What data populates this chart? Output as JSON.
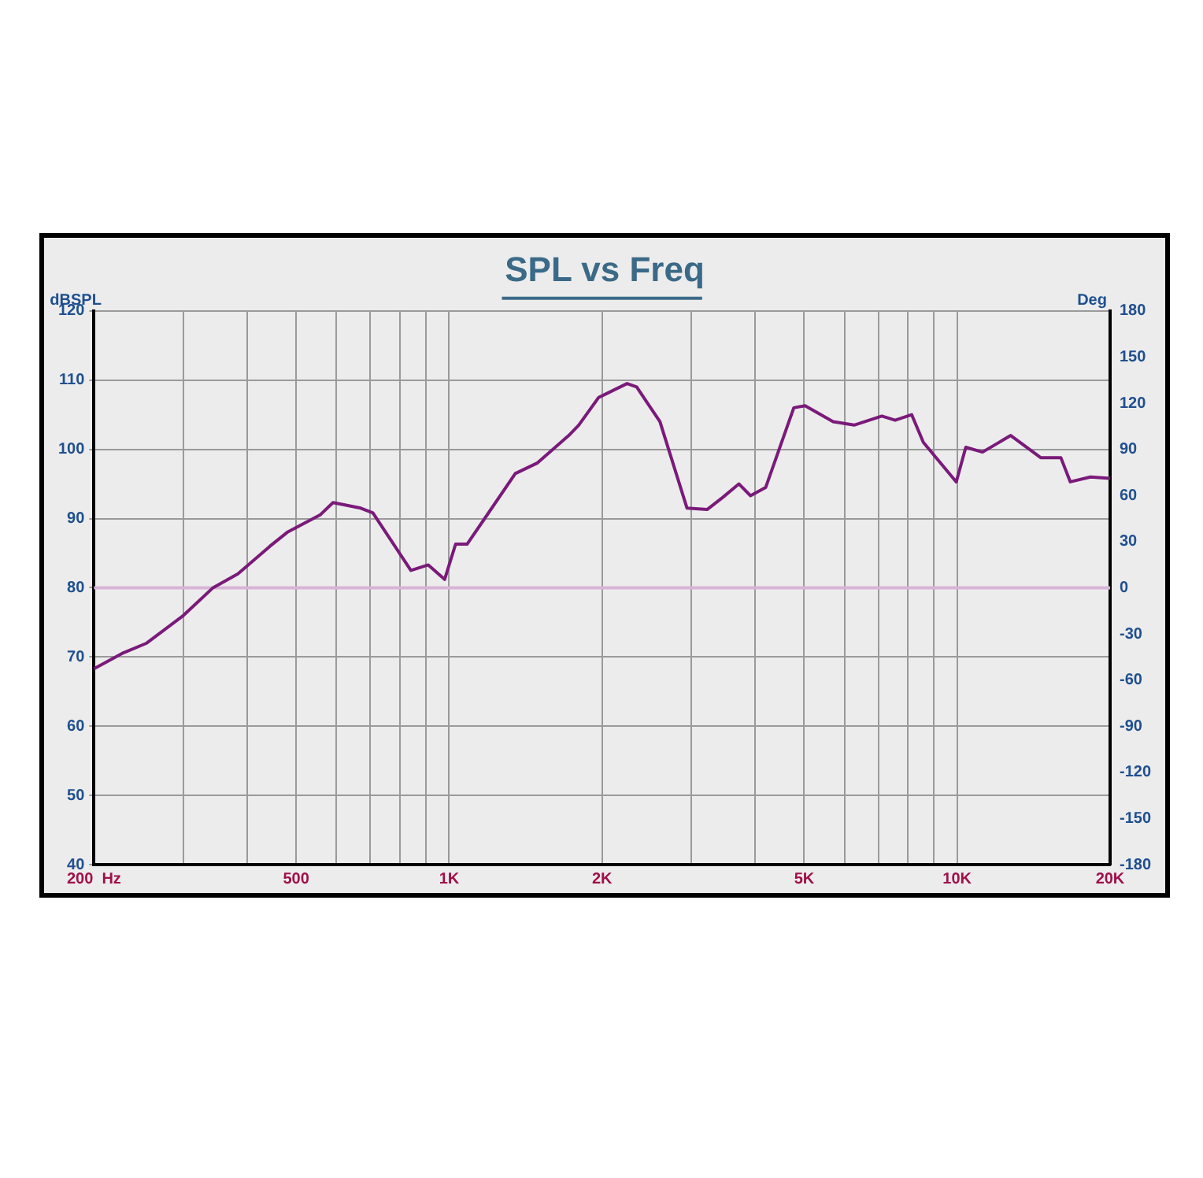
{
  "chart_data": {
    "type": "line",
    "title": "SPL vs Freq",
    "ylabel": "dBSPL",
    "y2label": "Deg",
    "x": [
      200,
      227,
      254,
      300,
      343,
      384,
      444,
      480,
      557,
      591,
      670,
      708,
      841,
      910,
      980,
      1030,
      1085,
      1175,
      1350,
      1490,
      1720,
      1800,
      1970,
      2240,
      2340,
      2600,
      2940,
      3220,
      3450,
      3720,
      3920,
      4200,
      4770,
      5020,
      5700,
      6270,
      7110,
      7550,
      8140,
      8580,
      9960,
      10400,
      11220,
      12750,
      14600,
      16000,
      16700,
      18300,
      20000
    ],
    "series": [
      {
        "color": "#7a1a7a",
        "values": [
          68.3,
          70.5,
          72,
          76,
          80,
          82,
          86,
          88,
          90.5,
          92.3,
          91.5,
          90.8,
          82.5,
          83.3,
          81.2,
          86.3,
          86.3,
          90,
          96.5,
          98,
          102,
          103.5,
          107.5,
          109.5,
          109,
          104,
          91.5,
          91.3,
          93,
          95,
          93.3,
          94.5,
          106,
          106.3,
          104,
          103.5,
          104.8,
          104.2,
          105,
          101,
          95.3,
          100.3,
          99.6,
          102,
          98.8,
          98.8,
          95.3,
          96,
          95.8
        ]
      }
    ],
    "log": "x",
    "xlim": [
      200,
      20000
    ],
    "xticks": [
      {
        "value": 200,
        "label": "200  Hz"
      },
      {
        "value": 300,
        "label": null
      },
      {
        "value": 400,
        "label": null
      },
      {
        "value": 500,
        "label": "500"
      },
      {
        "value": 600,
        "label": null
      },
      {
        "value": 700,
        "label": null
      },
      {
        "value": 800,
        "label": null
      },
      {
        "value": 900,
        "label": null
      },
      {
        "value": 1000,
        "label": "1K"
      },
      {
        "value": 2000,
        "label": "2K"
      },
      {
        "value": 3000,
        "label": null
      },
      {
        "value": 4000,
        "label": null
      },
      {
        "value": 5000,
        "label": "5K"
      },
      {
        "value": 6000,
        "label": null
      },
      {
        "value": 7000,
        "label": null
      },
      {
        "value": 8000,
        "label": null
      },
      {
        "value": 9000,
        "label": null
      },
      {
        "value": 10000,
        "label": "10K"
      },
      {
        "value": 20000,
        "label": "20K"
      }
    ],
    "ylim": [
      40,
      120
    ],
    "yticks": [
      40,
      50,
      60,
      70,
      80,
      90,
      100,
      110,
      120
    ],
    "y2lim": [
      -180,
      180
    ],
    "y2ticks": [
      -180,
      -150,
      -120,
      -90,
      -60,
      -30,
      0,
      30,
      60,
      90,
      120,
      150,
      180
    ],
    "ref_lines": [
      {
        "axis": "y2",
        "value": 0,
        "color": "#d8b4d8"
      }
    ],
    "grid": true,
    "legend": false,
    "marker": "none",
    "line_style": "solid"
  }
}
